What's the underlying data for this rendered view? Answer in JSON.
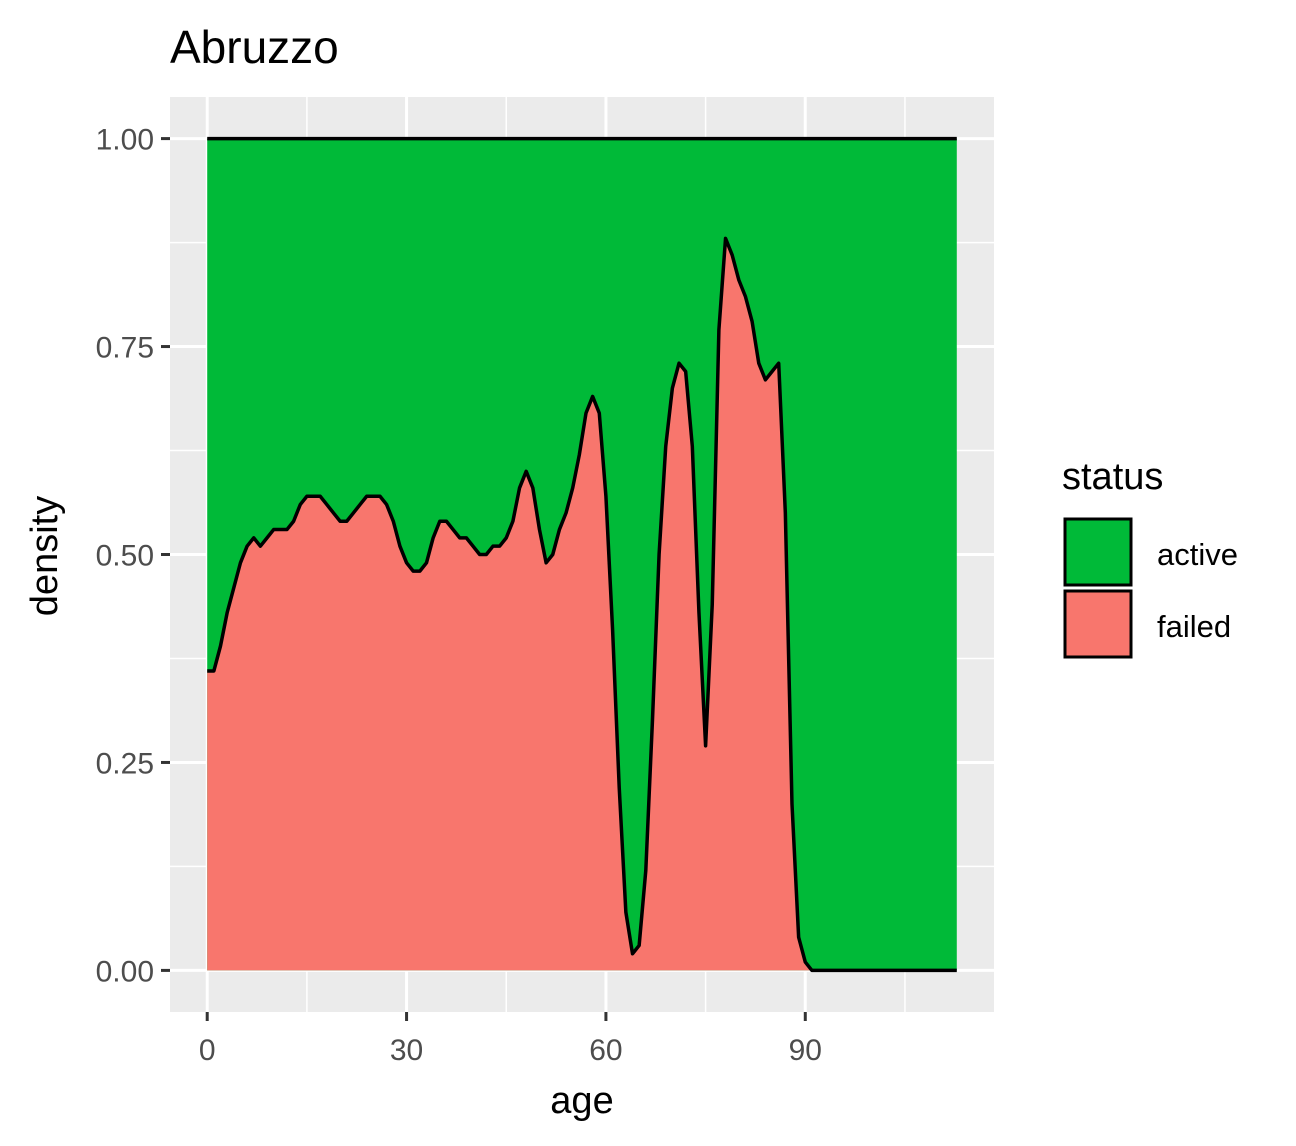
{
  "chart_data": {
    "type": "area",
    "title": "Abruzzo",
    "xlabel": "age",
    "ylabel": "density",
    "xlim": [
      -5.6,
      118.4
    ],
    "ylim": [
      -0.05,
      1.05
    ],
    "x_ticks": [
      0,
      30,
      60,
      90
    ],
    "x_tick_labels": [
      "0",
      "30",
      "60",
      "90"
    ],
    "y_ticks": [
      0,
      0.25,
      0.5,
      0.75,
      1
    ],
    "y_tick_labels": [
      "0.00",
      "0.25",
      "0.50",
      "0.75",
      "1.00"
    ],
    "grid": true,
    "stacking": "fill",
    "legend": {
      "title": "status",
      "position": "right",
      "entries": [
        {
          "label": "active",
          "color": "#00BA38"
        },
        {
          "label": "failed",
          "color": "#F8766D"
        }
      ]
    },
    "x": [
      0,
      1,
      2,
      3,
      4,
      5,
      6,
      7,
      8,
      9,
      10,
      11,
      12,
      13,
      14,
      15,
      16,
      17,
      18,
      19,
      20,
      21,
      22,
      23,
      24,
      25,
      26,
      27,
      28,
      29,
      30,
      31,
      32,
      33,
      34,
      35,
      36,
      37,
      38,
      39,
      40,
      41,
      42,
      43,
      44,
      45,
      46,
      47,
      48,
      49,
      50,
      51,
      52,
      53,
      54,
      55,
      56,
      57,
      58,
      59,
      60,
      61,
      62,
      63,
      64,
      65,
      66,
      67,
      68,
      69,
      70,
      71,
      72,
      73,
      74,
      75,
      76,
      77,
      78,
      79,
      80,
      81,
      82,
      83,
      84,
      85,
      86,
      87,
      88,
      89,
      90,
      91,
      92,
      95,
      100,
      104,
      108,
      112.8
    ],
    "series": [
      {
        "name": "failed",
        "color": "#F8766D",
        "values": [
          0.36,
          0.36,
          0.39,
          0.43,
          0.46,
          0.49,
          0.51,
          0.52,
          0.51,
          0.52,
          0.53,
          0.53,
          0.53,
          0.54,
          0.56,
          0.57,
          0.57,
          0.57,
          0.56,
          0.55,
          0.54,
          0.54,
          0.55,
          0.56,
          0.57,
          0.57,
          0.57,
          0.56,
          0.54,
          0.51,
          0.49,
          0.48,
          0.48,
          0.49,
          0.52,
          0.54,
          0.54,
          0.53,
          0.52,
          0.52,
          0.51,
          0.5,
          0.5,
          0.51,
          0.51,
          0.52,
          0.54,
          0.58,
          0.6,
          0.58,
          0.53,
          0.49,
          0.5,
          0.53,
          0.55,
          0.58,
          0.62,
          0.67,
          0.69,
          0.67,
          0.57,
          0.41,
          0.22,
          0.07,
          0.02,
          0.03,
          0.12,
          0.3,
          0.5,
          0.63,
          0.7,
          0.73,
          0.72,
          0.63,
          0.43,
          0.27,
          0.44,
          0.77,
          0.88,
          0.86,
          0.83,
          0.81,
          0.78,
          0.73,
          0.71,
          0.72,
          0.73,
          0.55,
          0.2,
          0.04,
          0.01,
          0.0,
          0.0,
          0.0,
          0.0,
          0.0,
          0.0,
          0.0
        ]
      },
      {
        "name": "active",
        "color": "#00BA38"
      }
    ]
  }
}
